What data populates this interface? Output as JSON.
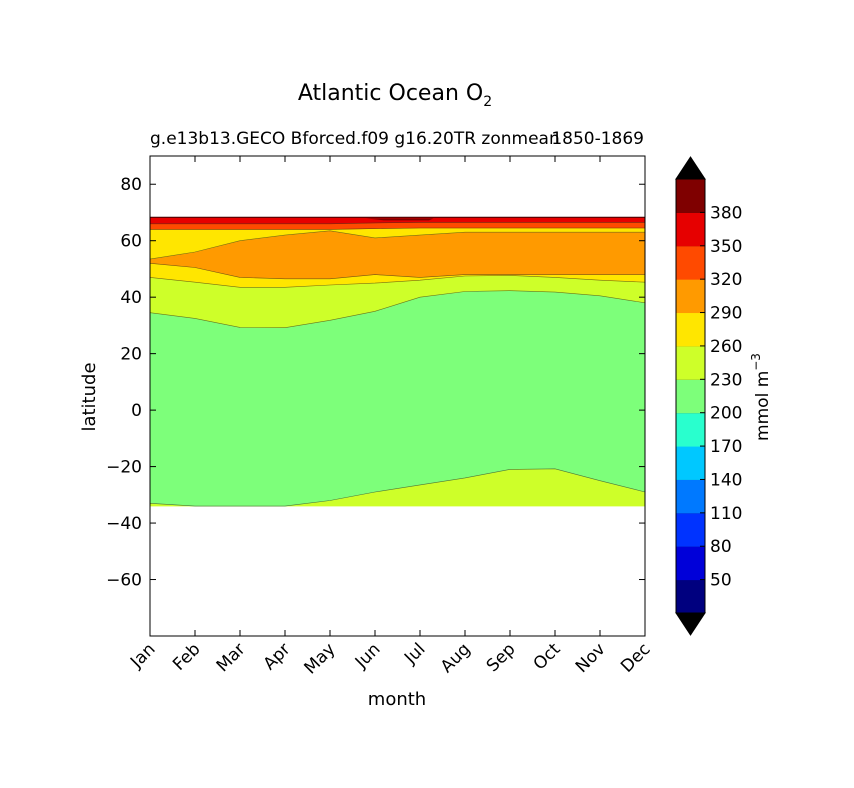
{
  "chart_data": {
    "type": "contourf",
    "title_main": "Atlantic Ocean O",
    "title_sub": "2",
    "subtitle_left": "g.e13b13.GECO Bforced.f09 g16.20TR zonmean",
    "subtitle_right": "1850-1869",
    "xlabel": "month",
    "ylabel": "latitude",
    "x_ticks": [
      "Jan",
      "Feb",
      "Mar",
      "Apr",
      "May",
      "Jun",
      "Jul",
      "Aug",
      "Sep",
      "Oct",
      "Nov",
      "Dec"
    ],
    "y_ticks": [
      80,
      60,
      40,
      20,
      0,
      -20,
      -40,
      -60
    ],
    "y_tick_labels": [
      "80",
      "60",
      "40",
      "20",
      "0",
      "−20",
      "−40",
      "−60"
    ],
    "ylim": [
      -80,
      90
    ],
    "xlim": [
      0,
      11
    ],
    "data_lat_range": [
      -34,
      68
    ],
    "colorbar": {
      "label": "mmol m",
      "label_exp": "−3",
      "levels": [
        20,
        50,
        80,
        110,
        140,
        170,
        200,
        230,
        260,
        290,
        320,
        350,
        380,
        410
      ],
      "tick_labels": [
        "50",
        "80",
        "110",
        "140",
        "170",
        "200",
        "230",
        "260",
        "290",
        "320",
        "350",
        "380"
      ],
      "colors": [
        "#00007f",
        "#0000d9",
        "#0033ff",
        "#0079ff",
        "#00c8ff",
        "#29ffce",
        "#7dff7a",
        "#ceff29",
        "#ffe600",
        "#ff9a00",
        "#ff4a00",
        "#e60000",
        "#7f0000"
      ],
      "extend_under_color": "#000000",
      "extend_over_color": "#000000"
    },
    "contour_boundaries": {
      "months": [
        0,
        1,
        2,
        3,
        4,
        5,
        6,
        7,
        8,
        9,
        10,
        11
      ],
      "b230_260_south": [
        -33,
        -34,
        -34,
        -34,
        -32,
        -29,
        -26.5,
        -24,
        -21,
        -20.8,
        -25,
        -29
      ],
      "b230_260_north": [
        34.5,
        32.5,
        29.3,
        29.2,
        31.8,
        35,
        40,
        42,
        42.3,
        41.8,
        40.5,
        38
      ],
      "b260_290": [
        47,
        45.3,
        43.5,
        43.5,
        44.3,
        45,
        46,
        47.5,
        47.7,
        47,
        46,
        45.3
      ],
      "b290_320_lower": [
        52,
        50.5,
        47,
        46.5,
        46.5,
        48,
        47,
        48,
        48,
        48,
        48,
        48
      ],
      "b290_320_upper": [
        53.5,
        56,
        60,
        62,
        63.5,
        61,
        62,
        63,
        63,
        63,
        63,
        63
      ],
      "b320_350": [
        64,
        64,
        64,
        64,
        64,
        64.3,
        64.5,
        64.5,
        64.5,
        64.5,
        64.5,
        64.5
      ],
      "b350_380": [
        66,
        66,
        66,
        66,
        66,
        66.3,
        66.5,
        66.5,
        66.5,
        66.5,
        66.5,
        66.5
      ],
      "dark_top_band": [
        68.3,
        68.3,
        68.3,
        68.3,
        68.3,
        68.3,
        68.3,
        68.3,
        68.3,
        68.3,
        68.3,
        68.3
      ]
    }
  }
}
